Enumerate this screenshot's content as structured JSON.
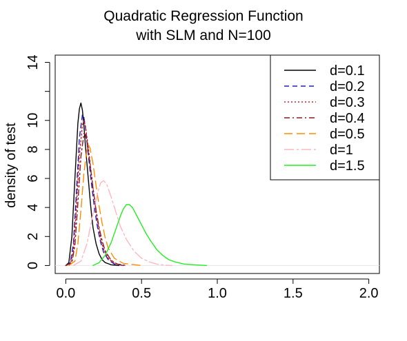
{
  "chart_data": {
    "type": "line",
    "title_line1": "Quadratic Regression Function",
    "title_line2": "with SLM and N=100",
    "xlabel": "",
    "ylabel": "density of test",
    "xlim": [
      -0.07,
      2.07
    ],
    "ylim": [
      -0.55,
      14.5
    ],
    "xticks": [
      0.0,
      0.5,
      1.0,
      1.5,
      2.0
    ],
    "xtick_labels": [
      "0.0",
      "0.5",
      "1.0",
      "1.5",
      "2.0"
    ],
    "yticks": [
      0,
      2,
      4,
      6,
      8,
      10,
      12,
      14
    ],
    "ytick_labels": [
      "0",
      "2",
      "4",
      "6",
      "8",
      "10",
      "",
      "14"
    ],
    "legend_position": "top-right",
    "series": [
      {
        "name": "d=0.1",
        "color": "#000000",
        "dash": "",
        "x": [
          0.0,
          0.02,
          0.04,
          0.06,
          0.08,
          0.09,
          0.1,
          0.11,
          0.12,
          0.13,
          0.14,
          0.15,
          0.16,
          0.17,
          0.18,
          0.2,
          0.22,
          0.24,
          0.26,
          0.3,
          0.35
        ],
        "y": [
          0.0,
          0.2,
          2.0,
          6.0,
          9.8,
          10.8,
          11.2,
          10.7,
          9.6,
          8.2,
          7.0,
          5.8,
          4.6,
          3.5,
          2.6,
          1.5,
          0.8,
          0.4,
          0.2,
          0.05,
          0.0
        ]
      },
      {
        "name": "d=0.2",
        "color": "#1f1fb8",
        "dash": "7,5",
        "x": [
          0.0,
          0.03,
          0.05,
          0.07,
          0.09,
          0.11,
          0.12,
          0.13,
          0.15,
          0.17,
          0.19,
          0.21,
          0.23,
          0.25,
          0.28,
          0.32,
          0.38
        ],
        "y": [
          0.0,
          0.2,
          1.5,
          5.0,
          8.8,
          10.4,
          10.2,
          9.5,
          7.5,
          5.6,
          3.9,
          2.6,
          1.6,
          0.9,
          0.4,
          0.1,
          0.0
        ]
      },
      {
        "name": "d=0.3",
        "color": "#cc1b2c",
        "dash": "2,3",
        "x": [
          0.0,
          0.03,
          0.05,
          0.07,
          0.09,
          0.11,
          0.12,
          0.13,
          0.15,
          0.17,
          0.19,
          0.21,
          0.23,
          0.25,
          0.28,
          0.32,
          0.38
        ],
        "y": [
          0.0,
          0.1,
          1.0,
          4.0,
          7.6,
          9.7,
          10.0,
          9.6,
          8.0,
          6.2,
          4.5,
          3.0,
          1.9,
          1.1,
          0.5,
          0.15,
          0.0
        ]
      },
      {
        "name": "d=0.4",
        "color": "#8b1a1a",
        "dash": "8,4,2,4",
        "x": [
          0.0,
          0.04,
          0.06,
          0.08,
          0.1,
          0.12,
          0.13,
          0.14,
          0.16,
          0.18,
          0.2,
          0.22,
          0.24,
          0.26,
          0.3,
          0.34,
          0.4
        ],
        "y": [
          0.0,
          0.2,
          1.4,
          4.3,
          7.5,
          9.1,
          9.0,
          8.5,
          7.0,
          5.3,
          3.8,
          2.6,
          1.7,
          1.0,
          0.35,
          0.1,
          0.0
        ]
      },
      {
        "name": "d=0.5",
        "color": "#ff8c00",
        "dash": "12,6",
        "x": [
          0.02,
          0.06,
          0.08,
          0.1,
          0.12,
          0.14,
          0.15,
          0.16,
          0.18,
          0.2,
          0.22,
          0.24,
          0.26,
          0.28,
          0.32,
          0.38,
          0.46,
          0.5
        ],
        "y": [
          0.0,
          0.3,
          1.5,
          3.8,
          6.4,
          8.0,
          8.3,
          8.1,
          7.0,
          5.5,
          4.1,
          2.9,
          1.9,
          1.2,
          0.5,
          0.15,
          0.05,
          0.0
        ]
      },
      {
        "name": "d=1",
        "color": "#ffb6c1",
        "dash": "14,4,3,4",
        "x": [
          0.05,
          0.1,
          0.14,
          0.18,
          0.21,
          0.23,
          0.25,
          0.27,
          0.3,
          0.33,
          0.36,
          0.4,
          0.45,
          0.5,
          0.55,
          0.6,
          0.65,
          0.7
        ],
        "y": [
          0.0,
          0.3,
          1.5,
          3.6,
          5.0,
          5.7,
          5.85,
          5.6,
          4.7,
          3.7,
          2.7,
          1.8,
          1.0,
          0.5,
          0.25,
          0.1,
          0.03,
          0.0
        ]
      },
      {
        "name": "d=1.5",
        "color": "#22ee22",
        "dash": "",
        "x": [
          0.18,
          0.22,
          0.26,
          0.3,
          0.33,
          0.36,
          0.38,
          0.4,
          0.42,
          0.44,
          0.46,
          0.48,
          0.5,
          0.53,
          0.56,
          0.6,
          0.64,
          0.68,
          0.72,
          0.78,
          0.85,
          0.93
        ],
        "y": [
          0.0,
          0.2,
          0.7,
          1.6,
          2.5,
          3.4,
          3.9,
          4.2,
          4.2,
          4.0,
          3.6,
          3.2,
          2.8,
          2.2,
          1.7,
          1.1,
          0.7,
          0.4,
          0.25,
          0.1,
          0.05,
          0.0
        ]
      }
    ]
  }
}
